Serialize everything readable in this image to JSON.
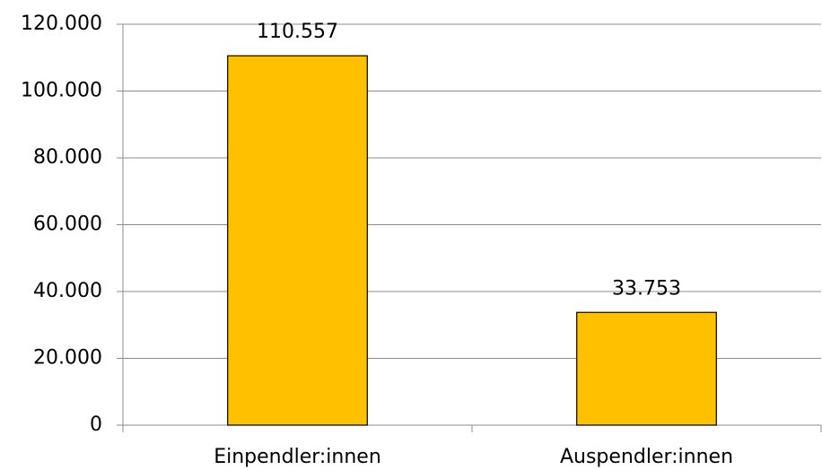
{
  "chart_data": {
    "type": "bar",
    "categories": [
      "Einpendler:innen",
      "Auspendler:innen"
    ],
    "values": [
      110557,
      33753
    ],
    "value_labels": [
      "110.557",
      "33.753"
    ],
    "color": "#ffc000",
    "ylim": [
      0,
      120000
    ],
    "yticks": [
      0,
      {
        "value": 20000,
        "label": "20.000"
      },
      {
        "value": 40000,
        "label": "40.000"
      },
      {
        "value": 60000,
        "label": "60.000"
      },
      {
        "value": 80000,
        "label": "80.000"
      },
      {
        "value": 100000,
        "label": "100.000"
      },
      {
        "value": 120000,
        "label": "120.000"
      }
    ],
    "grid": true
  }
}
